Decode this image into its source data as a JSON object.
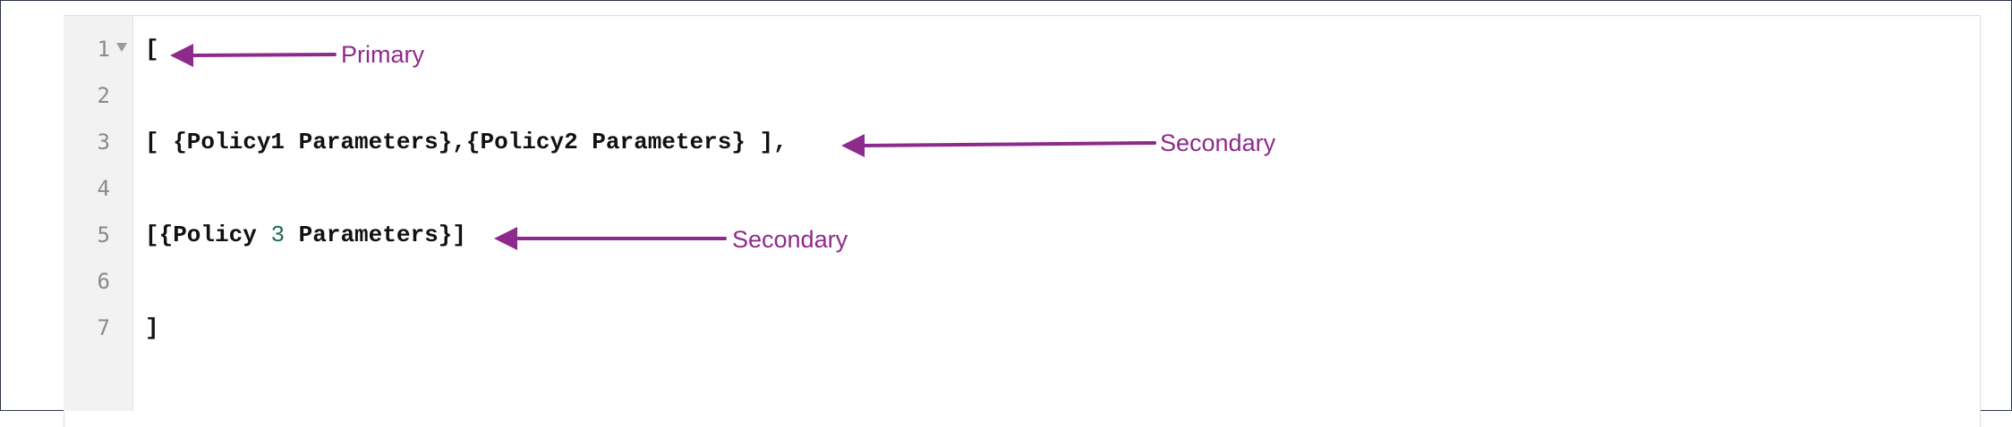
{
  "editor": {
    "line_numbers": [
      "1",
      "2",
      "3",
      "4",
      "5",
      "6",
      "7"
    ],
    "lines": {
      "l1": "[",
      "l3": "[ {Policy1 Parameters},{Policy2 Parameters} ],",
      "l5_before": "[{Policy ",
      "l5_number": "3",
      "l5_after": " Parameters}]",
      "l7": "]"
    }
  },
  "annotations": {
    "primary": "Primary",
    "secondary_1": "Secondary",
    "secondary_2": "Secondary",
    "color": "#8e2a8b"
  }
}
